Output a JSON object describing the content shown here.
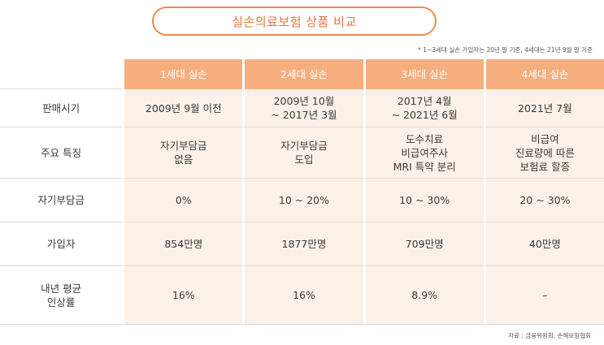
{
  "title": "실손의료보험 상품 비교",
  "note": "* 1~3세대 실손 가입자는 20년 말 기준, 4세대는 21년 9월 말 기준",
  "source": "자료 : 금융위원회, 손해보험협회",
  "columns": [
    "1세대 실손",
    "2세대 실손",
    "3세대 실손",
    "4세대 실손"
  ],
  "rows": [
    {
      "label": [
        "판매시기"
      ],
      "cells": [
        [
          "2009년 9월 이전"
        ],
        [
          "2009년 10월",
          "~ 2017년 3월"
        ],
        [
          "2017년 4월",
          "~ 2021년 6월"
        ],
        [
          "2021년 7월"
        ]
      ]
    },
    {
      "label": [
        "주요 특징"
      ],
      "cells": [
        [
          "자기부담금",
          "없음"
        ],
        [
          "자기부담금",
          "도입"
        ],
        [
          "도수치료",
          "비급여주사",
          "MRI 특약 분리"
        ],
        [
          "비급여",
          "진료량에 따른",
          "보험료 할증"
        ]
      ]
    },
    {
      "label": [
        "자기부담금"
      ],
      "cells": [
        [
          "0%"
        ],
        [
          "10 ~ 20%"
        ],
        [
          "10 ~ 30%"
        ],
        [
          "20 ~ 30%"
        ]
      ]
    },
    {
      "label": [
        "가입자"
      ],
      "cells": [
        [
          "854만명"
        ],
        [
          "1877만명"
        ],
        [
          "709만명"
        ],
        [
          "40만명"
        ]
      ]
    },
    {
      "label": [
        "내년 평균",
        "인상률"
      ],
      "cells": [
        [
          "16%"
        ],
        [
          "16%"
        ],
        [
          "8.9%"
        ],
        [
          "–"
        ]
      ]
    }
  ]
}
